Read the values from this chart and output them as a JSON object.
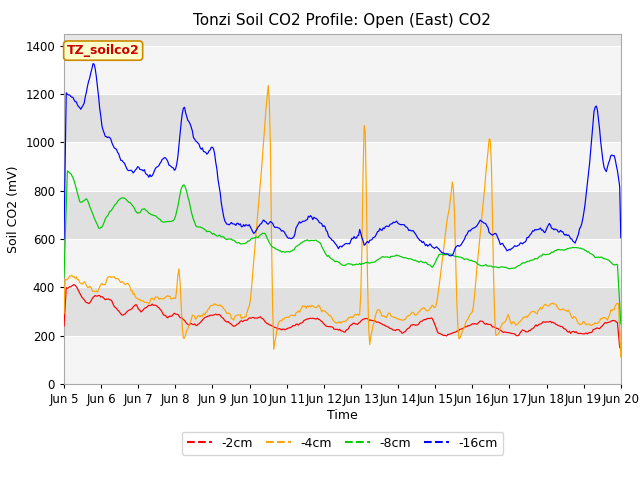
{
  "title": "Tonzi Soil CO2 Profile: Open (East) CO2",
  "ylabel": "Soil CO2 (mV)",
  "xlabel": "Time",
  "ylim": [
    0,
    1450
  ],
  "yticks": [
    0,
    200,
    400,
    600,
    800,
    1000,
    1200,
    1400
  ],
  "x_tick_labels": [
    "Jun 5",
    "Jun 6",
    "Jun 7",
    "Jun 8",
    "Jun 9",
    "Jun 10",
    "Jun 11",
    "Jun 12",
    "Jun 13",
    "Jun 14",
    "Jun 15",
    "Jun 16",
    "Jun 17",
    "Jun 18",
    "Jun 19",
    "Jun 20"
  ],
  "colors": {
    "2cm": "#ff0000",
    "4cm": "#ffa500",
    "8cm": "#00cc00",
    "16cm": "#0000ff"
  },
  "legend_labels": [
    "-2cm",
    "-4cm",
    "-8cm",
    "-16cm"
  ],
  "label_box_text": "TZ_soilco2",
  "label_box_facecolor": "#ffffcc",
  "label_box_edgecolor": "#cc8800",
  "label_box_textcolor": "#cc0000",
  "fig_bg_color": "#ffffff",
  "plot_bg_color": "#e8e8e8",
  "band_color_light": "#f5f5f5",
  "band_color_dark": "#e0e0e0",
  "title_fontsize": 11,
  "axis_fontsize": 9,
  "tick_fontsize": 8.5
}
